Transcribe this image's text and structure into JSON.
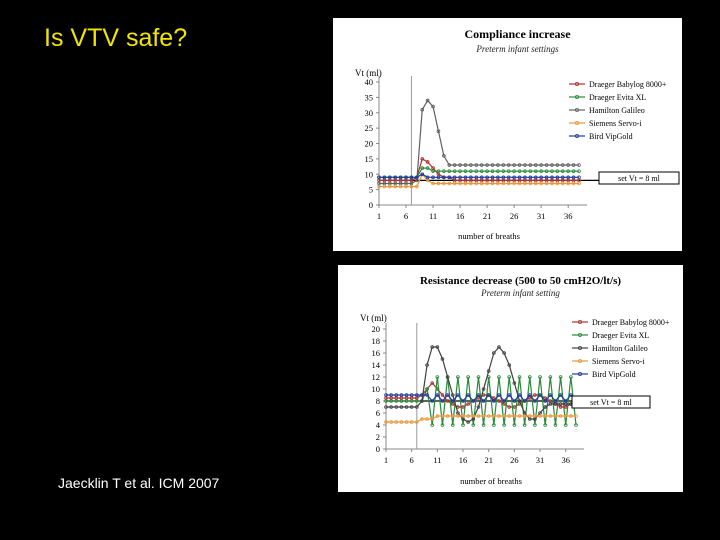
{
  "slide": {
    "title": "Is VTV safe?",
    "citation": "Jaecklin T et al. ICM 2007",
    "title_color": "#f2e600"
  },
  "chart_data": [
    {
      "type": "line",
      "title": "Compliance increase",
      "subtitle": "Preterm infant settings",
      "ylabel": "Vt (ml)",
      "xlabel": "number of breaths",
      "ylim": [
        0,
        40
      ],
      "yticks": [
        0,
        5,
        10,
        15,
        20,
        25,
        30,
        35,
        40
      ],
      "xlim": [
        1,
        38
      ],
      "xticks": [
        1,
        6,
        11,
        16,
        21,
        26,
        31,
        36
      ],
      "setpoint_label": "set Vt = 8 ml",
      "setpoint": 8,
      "event_line_x": 7,
      "legend_position": "top-right",
      "series": [
        {
          "name": "Draeger Babylog 8000+",
          "color": "#b03030",
          "values": [
            8,
            8,
            8,
            8,
            8,
            8,
            8,
            9,
            15,
            14,
            12,
            10,
            9,
            9,
            8,
            8,
            8,
            8,
            8,
            8,
            8,
            8,
            8,
            8,
            8,
            8,
            8,
            8,
            8,
            8,
            8,
            8,
            8,
            8,
            8,
            8,
            8,
            8
          ]
        },
        {
          "name": "Draeger Evita XL",
          "color": "#2a8a3a",
          "values": [
            9,
            9,
            9,
            9,
            9,
            9,
            9,
            9,
            12,
            12,
            11,
            11,
            11,
            11,
            11,
            11,
            11,
            11,
            11,
            11,
            11,
            11,
            11,
            11,
            11,
            11,
            11,
            11,
            11,
            11,
            11,
            11,
            11,
            11,
            11,
            11,
            11,
            11
          ]
        },
        {
          "name": "Hamilton Galileo",
          "color": "#606060",
          "values": [
            7,
            7,
            7,
            7,
            7,
            7,
            7,
            8,
            31,
            34,
            32,
            24,
            16,
            13,
            13,
            13,
            13,
            13,
            13,
            13,
            13,
            13,
            13,
            13,
            13,
            13,
            13,
            13,
            13,
            13,
            13,
            13,
            13,
            13,
            13,
            13,
            13,
            13
          ]
        },
        {
          "name": "Siemens Servo-i",
          "color": "#e8963a",
          "values": [
            6,
            6,
            6,
            6,
            6,
            6,
            6,
            6,
            10,
            8,
            7,
            7,
            7,
            7,
            7,
            7,
            7,
            7,
            7,
            7,
            7,
            7,
            7,
            7,
            7,
            7,
            7,
            7,
            7,
            7,
            7,
            7,
            7,
            7,
            7,
            7,
            7,
            7
          ]
        },
        {
          "name": "Bird VipGold",
          "color": "#1f3a9a",
          "values": [
            9,
            9,
            9,
            9,
            9,
            9,
            9,
            9,
            10,
            9,
            9,
            9,
            9,
            9,
            9,
            9,
            9,
            9,
            9,
            9,
            9,
            9,
            9,
            9,
            9,
            9,
            9,
            9,
            9,
            9,
            9,
            9,
            9,
            9,
            9,
            9,
            9,
            9
          ]
        }
      ]
    },
    {
      "type": "line",
      "title": "Resistance decrease (500 to 50 cmH2O/lt/s)",
      "subtitle": "Preterm infant setting",
      "ylabel": "Vt (ml)",
      "xlabel": "number of breaths",
      "ylim": [
        0,
        20
      ],
      "yticks": [
        0,
        2,
        4,
        6,
        8,
        10,
        12,
        14,
        16,
        18,
        20
      ],
      "xlim": [
        1,
        38
      ],
      "xticks": [
        1,
        6,
        11,
        16,
        21,
        26,
        31,
        36
      ],
      "setpoint_label": "set Vt = 8 ml",
      "setpoint": 8,
      "event_line_x": 7,
      "legend_position": "top-right",
      "series": [
        {
          "name": "Draeger Babylog 8000+",
          "color": "#b03030",
          "values": [
            8.5,
            8.5,
            8.5,
            8.5,
            8.5,
            8.5,
            8.5,
            9,
            10,
            11,
            10,
            9,
            8,
            7.5,
            7,
            7,
            7.5,
            8,
            8.5,
            9,
            9,
            8.5,
            8,
            7.5,
            7,
            7,
            7.5,
            8,
            8.5,
            9,
            9,
            8.5,
            8,
            7.5,
            7,
            7,
            7.5,
            8
          ]
        },
        {
          "name": "Draeger Evita XL",
          "color": "#2a8a3a",
          "values": [
            8,
            8,
            8,
            8,
            8,
            8,
            8,
            8,
            10,
            4,
            12,
            4,
            12,
            4,
            12,
            4,
            12,
            4,
            12,
            4,
            12,
            4,
            12,
            4,
            12,
            4,
            12,
            4,
            12,
            4,
            12,
            4,
            12,
            4,
            12,
            4,
            12,
            4
          ]
        },
        {
          "name": "Hamilton Galileo",
          "color": "#404040",
          "values": [
            7,
            7,
            7,
            7,
            7,
            7,
            7,
            8,
            14,
            17,
            17,
            15,
            12,
            9,
            6,
            5,
            4.5,
            5,
            7,
            10,
            13,
            16,
            17,
            16,
            14,
            11,
            8,
            6,
            5,
            5,
            6,
            7,
            7.5,
            7.5,
            7.5,
            7.5,
            7.5,
            7.5
          ]
        },
        {
          "name": "Siemens Servo-i",
          "color": "#e8963a",
          "values": [
            4.5,
            4.5,
            4.5,
            4.5,
            4.5,
            4.5,
            4.5,
            5,
            5,
            5,
            5.5,
            5.5,
            5.5,
            5.5,
            5.5,
            5.5,
            5.5,
            5.5,
            5.5,
            5.5,
            5.5,
            5.5,
            5.5,
            5.5,
            5.5,
            5.5,
            5.5,
            5.5,
            5.5,
            5.5,
            5.5,
            5.5,
            5.5,
            5.5,
            5.5,
            5.5,
            5.5,
            5.5
          ]
        },
        {
          "name": "Bird VipGold",
          "color": "#1f3a9a",
          "values": [
            9,
            9,
            9,
            9,
            9,
            9,
            9,
            9,
            9,
            8,
            9,
            8,
            9,
            8,
            9,
            8,
            9,
            8,
            9,
            8,
            9,
            8,
            9,
            8,
            9,
            8,
            9,
            8,
            9,
            8,
            9,
            8,
            9,
            8,
            9,
            8,
            9,
            8
          ]
        }
      ]
    }
  ]
}
